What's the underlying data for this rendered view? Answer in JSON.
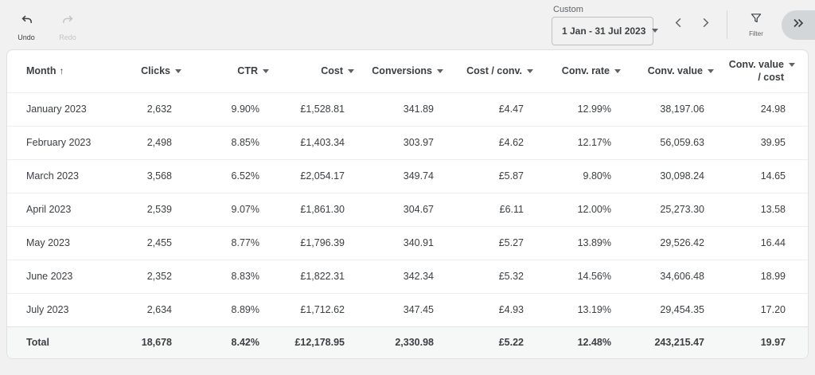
{
  "toolbar": {
    "undo": "Undo",
    "redo": "Redo",
    "date_range_type": "Custom",
    "date_range_value": "1 Jan - 31 Jul 2023",
    "filter": "Filter",
    "icons": [
      "undo-icon",
      "redo-icon",
      "dropdown-caret-icon",
      "chevron-left-icon",
      "chevron-right-icon",
      "filter-funnel-icon",
      "double-chevron-right-icon"
    ]
  },
  "table": {
    "columns": [
      {
        "label": "Month",
        "align": "left",
        "sort": "asc"
      },
      {
        "label": "Clicks",
        "align": "right",
        "sort": "menu"
      },
      {
        "label": "CTR",
        "align": "right",
        "sort": "menu"
      },
      {
        "label": "Cost",
        "align": "right",
        "sort": "menu"
      },
      {
        "label": "Conversions",
        "align": "right",
        "sort": "menu"
      },
      {
        "label": "Cost / conv.",
        "align": "right",
        "sort": "menu"
      },
      {
        "label": "Conv. rate",
        "align": "right",
        "sort": "menu"
      },
      {
        "label": "Conv. value",
        "align": "right",
        "sort": "menu"
      },
      {
        "label": "Conv. value / cost",
        "align": "right",
        "sort": "menu"
      }
    ],
    "rows": [
      [
        "January 2023",
        "2,632",
        "9.90%",
        "£1,528.81",
        "341.89",
        "£4.47",
        "12.99%",
        "38,197.06",
        "24.98"
      ],
      [
        "February 2023",
        "2,498",
        "8.85%",
        "£1,403.34",
        "303.97",
        "£4.62",
        "12.17%",
        "56,059.63",
        "39.95"
      ],
      [
        "March 2023",
        "3,568",
        "6.52%",
        "£2,054.17",
        "349.74",
        "£5.87",
        "9.80%",
        "30,098.24",
        "14.65"
      ],
      [
        "April 2023",
        "2,539",
        "9.07%",
        "£1,861.30",
        "304.67",
        "£6.11",
        "12.00%",
        "25,273.30",
        "13.58"
      ],
      [
        "May 2023",
        "2,455",
        "8.77%",
        "£1,796.39",
        "340.91",
        "£5.27",
        "13.89%",
        "29,526.42",
        "16.44"
      ],
      [
        "June 2023",
        "2,352",
        "8.83%",
        "£1,822.31",
        "342.34",
        "£5.32",
        "14.56%",
        "34,606.48",
        "18.99"
      ],
      [
        "July 2023",
        "2,634",
        "8.89%",
        "£1,712.62",
        "347.45",
        "£4.93",
        "13.19%",
        "29,454.35",
        "17.20"
      ]
    ],
    "total": [
      "Total",
      "18,678",
      "8.42%",
      "£12,178.95",
      "2,330.98",
      "£5.22",
      "12.48%",
      "243,215.47",
      "19.97"
    ]
  },
  "colors": {
    "toolbar_bg": "#f1f1f1",
    "card_bg": "#ffffff",
    "text": "#3c4043",
    "muted_text": "#5f6368",
    "disabled_text": "#c2c5c8",
    "row_border": "#ebedee",
    "total_row_bg": "#f6f7f7",
    "expand_button_bg": "#d3d6d9"
  }
}
